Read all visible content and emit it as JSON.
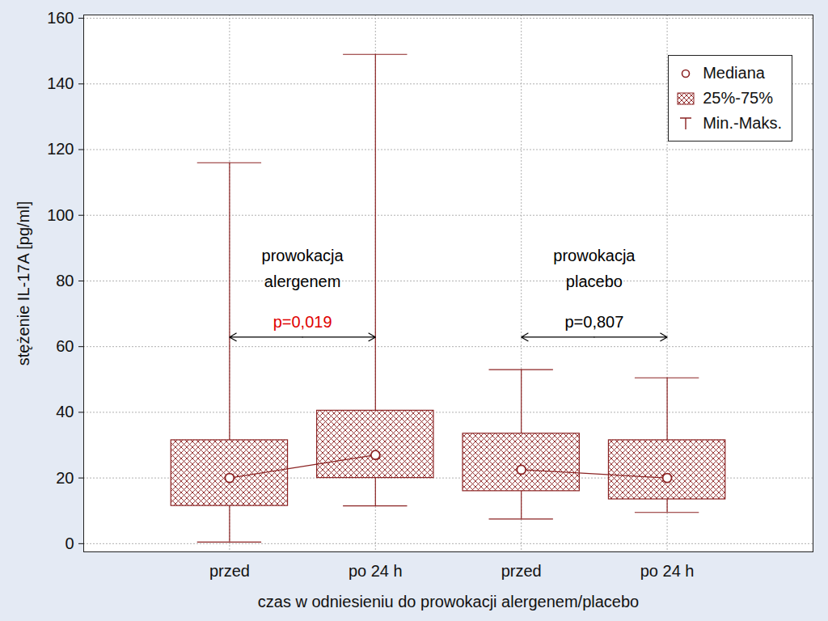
{
  "chart_data": {
    "type": "box",
    "x_label": "czas w odniesieniu do prowokacji alergenem/placebo",
    "y_label": "stężenie IL-17A [pg/ml]",
    "categories": [
      "przed",
      "po 24 h",
      "przed",
      "po 24 h"
    ],
    "min": [
      0.5,
      11.5,
      7.5,
      9.5
    ],
    "q1": [
      11.5,
      20,
      16,
      13.5
    ],
    "median": [
      20,
      27,
      22.5,
      20
    ],
    "q3": [
      31.5,
      40.5,
      33.5,
      31.5
    ],
    "max": [
      116,
      149,
      53,
      50.5
    ],
    "color": "#8b2323",
    "ylim": [
      -2.5,
      161
    ],
    "yticks": [
      0,
      20,
      40,
      60,
      80,
      100,
      120,
      140,
      160
    ],
    "grid": true,
    "legend": "top-right",
    "legend_labels": {
      "median": "Mediana",
      "box": "25%-75%",
      "whisker": "Min.-Maks."
    },
    "annotations": [
      {
        "text": "prowokacja\nalergenem",
        "from": 0,
        "to": 1,
        "p": 0.019,
        "p_label": "p=0,019",
        "color": "#e00000"
      },
      {
        "text": "prowokacja\nplacebo",
        "from": 2,
        "to": 3,
        "p": 0.807,
        "p_label": "p=0,807",
        "color": "#000000"
      }
    ]
  }
}
